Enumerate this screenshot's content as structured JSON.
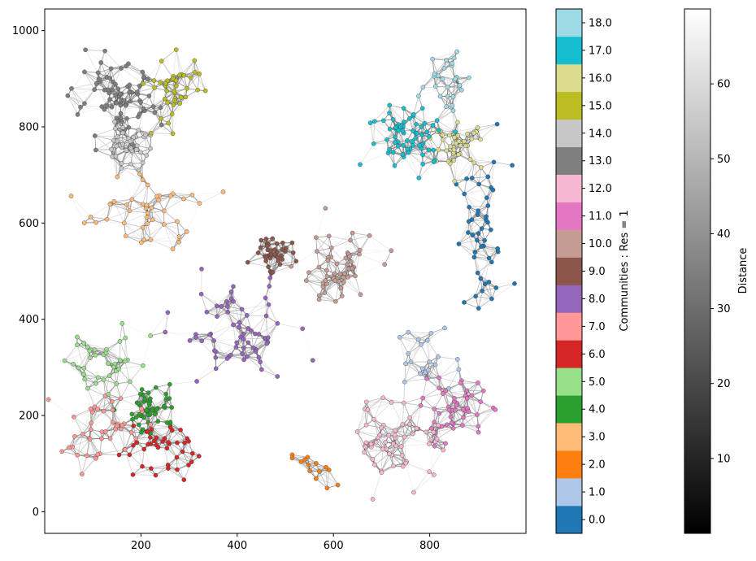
{
  "chart_data": {
    "type": "scatter",
    "subtype": "network-graph",
    "title": "",
    "xlim": [
      0,
      1000
    ],
    "ylim": [
      -45,
      1045
    ],
    "xticks": [
      200,
      400,
      600,
      800
    ],
    "yticks": [
      0,
      200,
      400,
      600,
      800,
      1000
    ],
    "colorbar_communities": {
      "label": "Communities : Res = 1",
      "ticks": [
        "0.0",
        "1.0",
        "2.0",
        "3.0",
        "4.0",
        "5.0",
        "6.0",
        "7.0",
        "8.0",
        "9.0",
        "10.0",
        "11.0",
        "12.0",
        "13.0",
        "14.0",
        "15.0",
        "16.0",
        "17.0",
        "18.0"
      ],
      "colors": [
        "#1f77b4",
        "#aec7e8",
        "#ff7f0e",
        "#ffbb78",
        "#2ca02c",
        "#98df8a",
        "#d62728",
        "#ff9896",
        "#9467bd",
        "#8c564b",
        "#c49c94",
        "#e377c2",
        "#f7b6d2",
        "#7f7f7f",
        "#c7c7c7",
        "#bcbd22",
        "#dbdb8d",
        "#17becf",
        "#9edae5"
      ]
    },
    "colorbar_distance": {
      "label": "Distance",
      "ticks": [
        10,
        20,
        30,
        40,
        50,
        60
      ],
      "range": [
        0,
        70
      ],
      "colormap": "gray"
    },
    "communities": [
      {
        "id": 0,
        "center": [
          910,
          560
        ],
        "spread": [
          55,
          150
        ],
        "n": 48
      },
      {
        "id": 1,
        "center": [
          790,
          320
        ],
        "spread": [
          55,
          55
        ],
        "n": 22
      },
      {
        "id": 2,
        "center": [
          560,
          90
        ],
        "spread": [
          45,
          40
        ],
        "n": 14
      },
      {
        "id": 3,
        "center": [
          210,
          620
        ],
        "spread": [
          110,
          70
        ],
        "n": 45
      },
      {
        "id": 4,
        "center": [
          225,
          215
        ],
        "spread": [
          45,
          45
        ],
        "n": 50
      },
      {
        "id": 5,
        "center": [
          130,
          320
        ],
        "spread": [
          80,
          70
        ],
        "n": 38
      },
      {
        "id": 6,
        "center": [
          230,
          130
        ],
        "spread": [
          70,
          60
        ],
        "n": 42
      },
      {
        "id": 7,
        "center": [
          120,
          170
        ],
        "spread": [
          75,
          70
        ],
        "n": 45
      },
      {
        "id": 8,
        "center": [
          400,
          370
        ],
        "spread": [
          110,
          90
        ],
        "n": 70
      },
      {
        "id": 9,
        "center": [
          470,
          540
        ],
        "spread": [
          35,
          30
        ],
        "n": 40
      },
      {
        "id": 10,
        "center": [
          600,
          500
        ],
        "spread": [
          75,
          80
        ],
        "n": 55
      },
      {
        "id": 11,
        "center": [
          850,
          210
        ],
        "spread": [
          60,
          55
        ],
        "n": 55
      },
      {
        "id": 12,
        "center": [
          740,
          150
        ],
        "spread": [
          90,
          75
        ],
        "n": 60
      },
      {
        "id": 13,
        "center": [
          150,
          850
        ],
        "spread": [
          80,
          70
        ],
        "n": 80
      },
      {
        "id": 14,
        "center": [
          170,
          760
        ],
        "spread": [
          45,
          35
        ],
        "n": 40
      },
      {
        "id": 15,
        "center": [
          270,
          880
        ],
        "spread": [
          55,
          70
        ],
        "n": 40
      },
      {
        "id": 16,
        "center": [
          860,
          760
        ],
        "spread": [
          45,
          40
        ],
        "n": 40
      },
      {
        "id": 17,
        "center": [
          760,
          780
        ],
        "spread": [
          80,
          60
        ],
        "n": 70
      },
      {
        "id": 18,
        "center": [
          840,
          900
        ],
        "spread": [
          45,
          60
        ],
        "n": 28
      }
    ]
  }
}
